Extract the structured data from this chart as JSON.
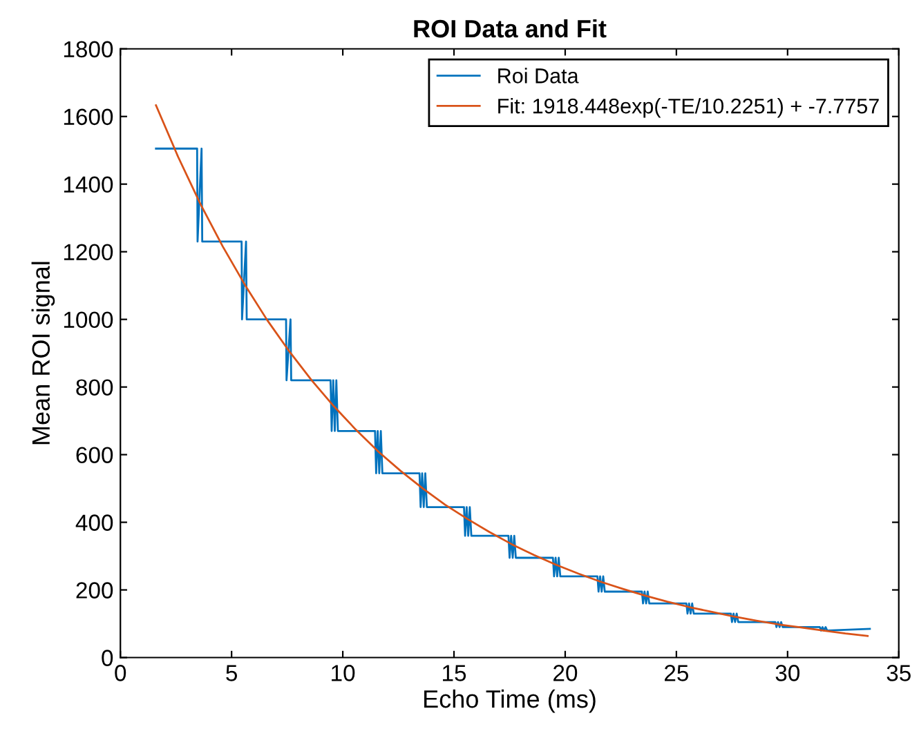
{
  "chart_data": {
    "type": "line",
    "title": "ROI Data and Fit",
    "xlabel": "Echo Time (ms)",
    "ylabel": "Mean ROI signal",
    "xlim": [
      0,
      35
    ],
    "xticks": [
      0,
      5,
      10,
      15,
      20,
      25,
      30,
      35
    ],
    "ylim": [
      0,
      1800
    ],
    "yticks": [
      0,
      200,
      400,
      600,
      800,
      1000,
      1200,
      1400,
      1600,
      1800
    ],
    "grid": false,
    "legend": "top right",
    "marker": "none",
    "line_style": "solid",
    "series": [
      {
        "name": "Roi Data",
        "color": "#0072bd",
        "x": [
          1.6,
          3.45,
          3.47,
          3.65,
          3.68,
          5.45,
          5.47,
          5.65,
          5.68,
          7.45,
          7.47,
          7.65,
          7.68,
          9.45,
          9.5,
          9.57,
          9.64,
          9.71,
          9.78,
          11.45,
          11.5,
          11.57,
          11.64,
          11.71,
          11.78,
          13.45,
          13.5,
          13.57,
          13.64,
          13.71,
          13.78,
          15.45,
          15.5,
          15.57,
          15.64,
          15.71,
          15.78,
          17.45,
          17.5,
          17.57,
          17.64,
          17.71,
          17.78,
          19.45,
          19.5,
          19.57,
          19.64,
          19.71,
          19.78,
          21.45,
          21.5,
          21.57,
          21.64,
          21.71,
          21.78,
          23.45,
          23.5,
          23.57,
          23.64,
          23.71,
          23.78,
          25.45,
          25.5,
          25.57,
          25.64,
          25.71,
          25.78,
          27.45,
          27.5,
          27.57,
          27.64,
          27.71,
          27.78,
          29.45,
          29.5,
          29.57,
          29.64,
          29.71,
          29.78,
          31.45,
          31.5,
          31.57,
          31.64,
          31.71,
          31.78,
          33.7
        ],
        "values": [
          1505,
          1505,
          1230,
          1505,
          1230,
          1230,
          1000,
          1230,
          1000,
          1000,
          820,
          1000,
          820,
          820,
          670,
          820,
          670,
          820,
          670,
          670,
          545,
          670,
          545,
          670,
          545,
          545,
          445,
          545,
          445,
          545,
          445,
          445,
          360,
          445,
          360,
          445,
          360,
          360,
          295,
          360,
          295,
          360,
          295,
          295,
          240,
          295,
          240,
          295,
          240,
          240,
          195,
          240,
          195,
          240,
          195,
          195,
          160,
          195,
          160,
          195,
          160,
          160,
          130,
          160,
          130,
          160,
          130,
          130,
          105,
          130,
          105,
          130,
          105,
          105,
          90,
          105,
          90,
          105,
          90,
          90,
          80,
          90,
          80,
          90,
          80,
          85
        ]
      },
      {
        "name": "Fit: 1918.448exp(-TE/10.2251) + -7.7757",
        "color": "#d95319",
        "x": [
          1.6,
          2.6,
          3.6,
          4.6,
          5.6,
          6.6,
          7.6,
          8.6,
          9.6,
          10.6,
          11.6,
          12.6,
          13.6,
          14.6,
          15.6,
          16.6,
          17.6,
          18.6,
          19.6,
          20.6,
          21.6,
          22.6,
          23.6,
          24.6,
          25.6,
          26.6,
          27.6,
          28.6,
          29.6,
          30.6,
          31.6,
          32.6,
          33.6
        ],
        "values": [
          1633,
          1480,
          1341,
          1216,
          1102,
          998,
          905,
          820,
          743,
          673,
          609,
          552,
          500,
          452,
          410,
          371,
          335,
          303,
          274,
          248,
          224,
          203,
          183,
          165,
          149,
          135,
          121,
          109,
          98,
          89,
          80,
          71,
          64
        ]
      }
    ]
  }
}
